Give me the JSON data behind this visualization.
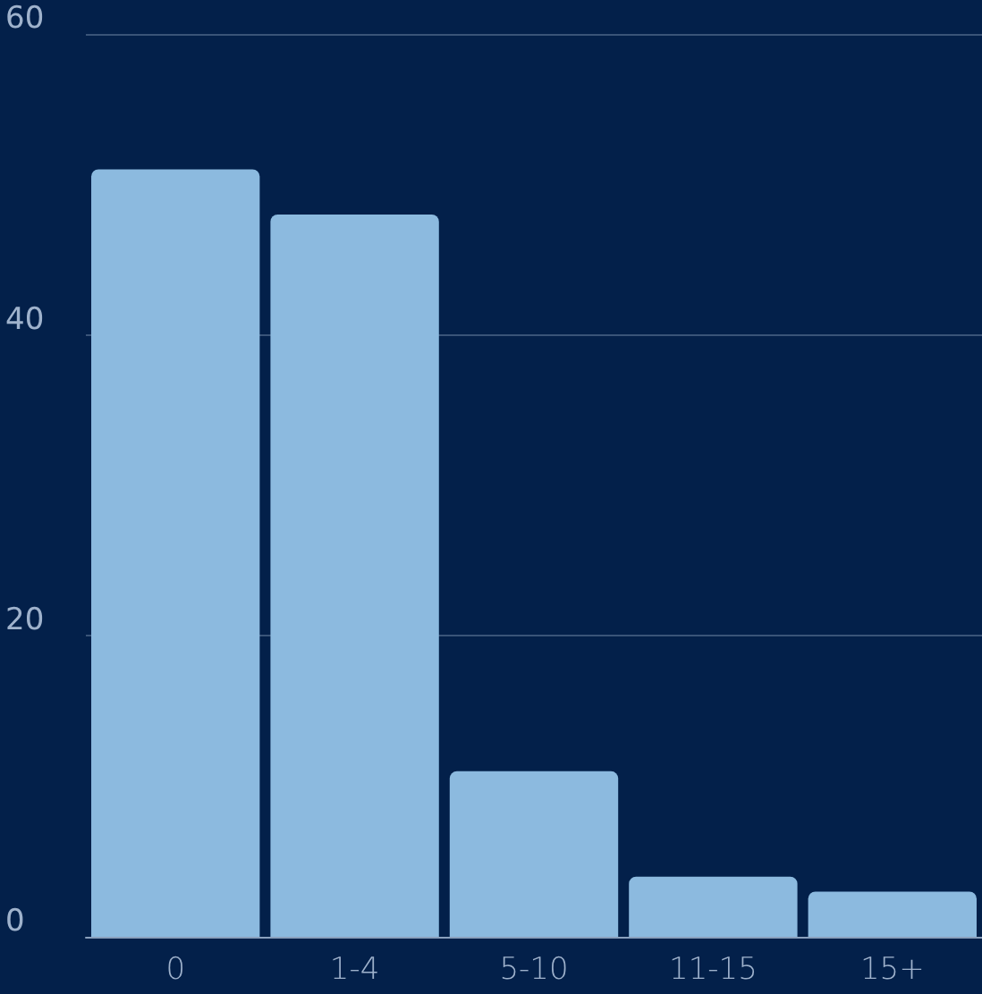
{
  "chart_data": {
    "type": "bar",
    "categories": [
      "0",
      "1-4",
      "5-10",
      "11-15",
      "15+"
    ],
    "values": [
      51,
      48,
      11,
      4,
      3
    ],
    "color": "#8cbadf",
    "ylim": [
      0,
      60
    ],
    "yticks": [
      0,
      20,
      40,
      60
    ],
    "grid": "y"
  }
}
